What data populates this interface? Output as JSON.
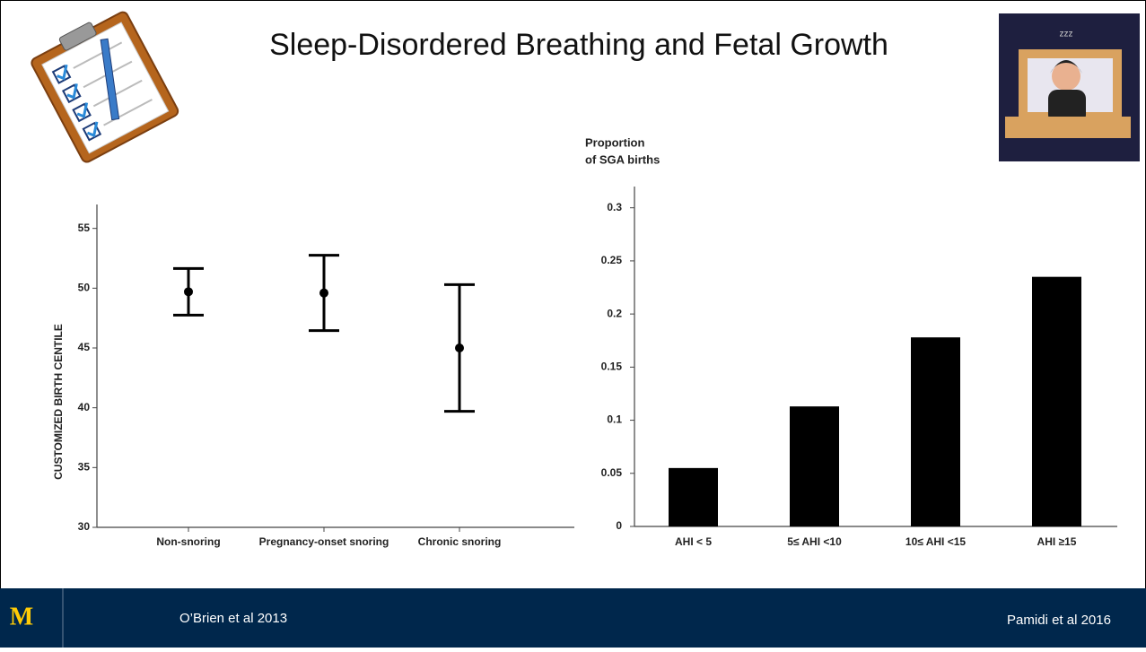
{
  "slide": {
    "title": "Sleep-Disordered Breathing and Fetal Growth",
    "footer_left": "O’Brien et al 2013",
    "footer_right": "Pamidi et al 2016",
    "logo": "M"
  },
  "chart_data": [
    {
      "type": "errorbar",
      "ylabel": "CUSTOMIZED BIRTH CENTILE",
      "categories": [
        "Non-snoring",
        "Pregnancy-onset snoring",
        "Chronic snoring"
      ],
      "values": [
        49.7,
        49.6,
        45.0
      ],
      "errors": [
        1.95,
        3.15,
        5.3
      ],
      "color": "#000000",
      "ylim": [
        30,
        57
      ],
      "yticks": [
        30,
        35,
        40,
        45,
        50,
        55
      ]
    },
    {
      "type": "bar",
      "ylabel": [
        "Proportion",
        "of SGA births"
      ],
      "categories": [
        "AHI < 5",
        "5≤ AHI <10",
        "10≤ AHI <15",
        "AHI ≥15"
      ],
      "values": [
        0.055,
        0.113,
        0.178,
        0.235
      ],
      "color": "#000000",
      "ylim": [
        0,
        0.32
      ],
      "yticks": [
        0,
        0.05,
        0.1,
        0.15,
        0.2,
        0.25,
        0.3
      ]
    }
  ]
}
